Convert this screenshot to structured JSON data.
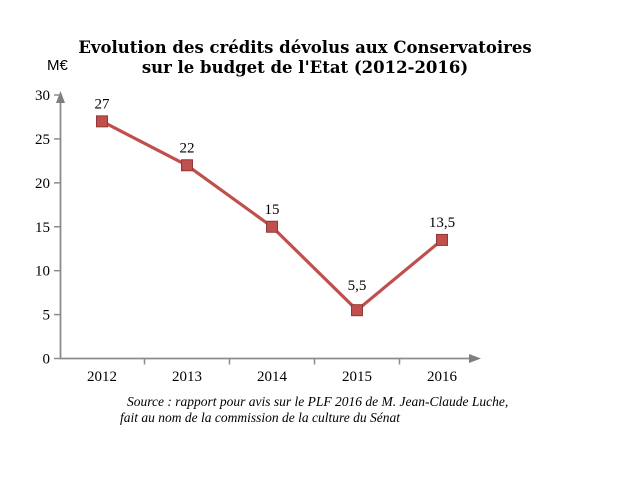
{
  "chart_data": {
    "type": "line",
    "title_line1": "Evolution des crédits dévolus aux Conservatoires",
    "title_line2": "sur le budget de l'Etat (2012-2016)",
    "unit_label": "M€",
    "categories": [
      "2012",
      "2013",
      "2014",
      "2015",
      "2016"
    ],
    "values": [
      27,
      22,
      15,
      5.5,
      13.5
    ],
    "value_labels": [
      "27",
      "22",
      "15",
      "5,5",
      "13,5"
    ],
    "xlabel": "",
    "ylabel": "M€",
    "ylim": [
      0,
      30
    ],
    "ytick_step": 5,
    "ytick_labels": [
      "0",
      "5",
      "10",
      "15",
      "20",
      "25",
      "30"
    ],
    "grid": false,
    "legend": "none",
    "colors": {
      "series": "#c0504d",
      "marker_edge": "#943634",
      "axis": "#8c8c8c",
      "arrow": "#7f7f7f",
      "text": "#000000"
    },
    "source_line1": "Source : rapport pour avis sur le PLF 2016 de M. Jean-Claude Luche,",
    "source_line2": "fait au nom de la commission de la culture du Sénat"
  }
}
